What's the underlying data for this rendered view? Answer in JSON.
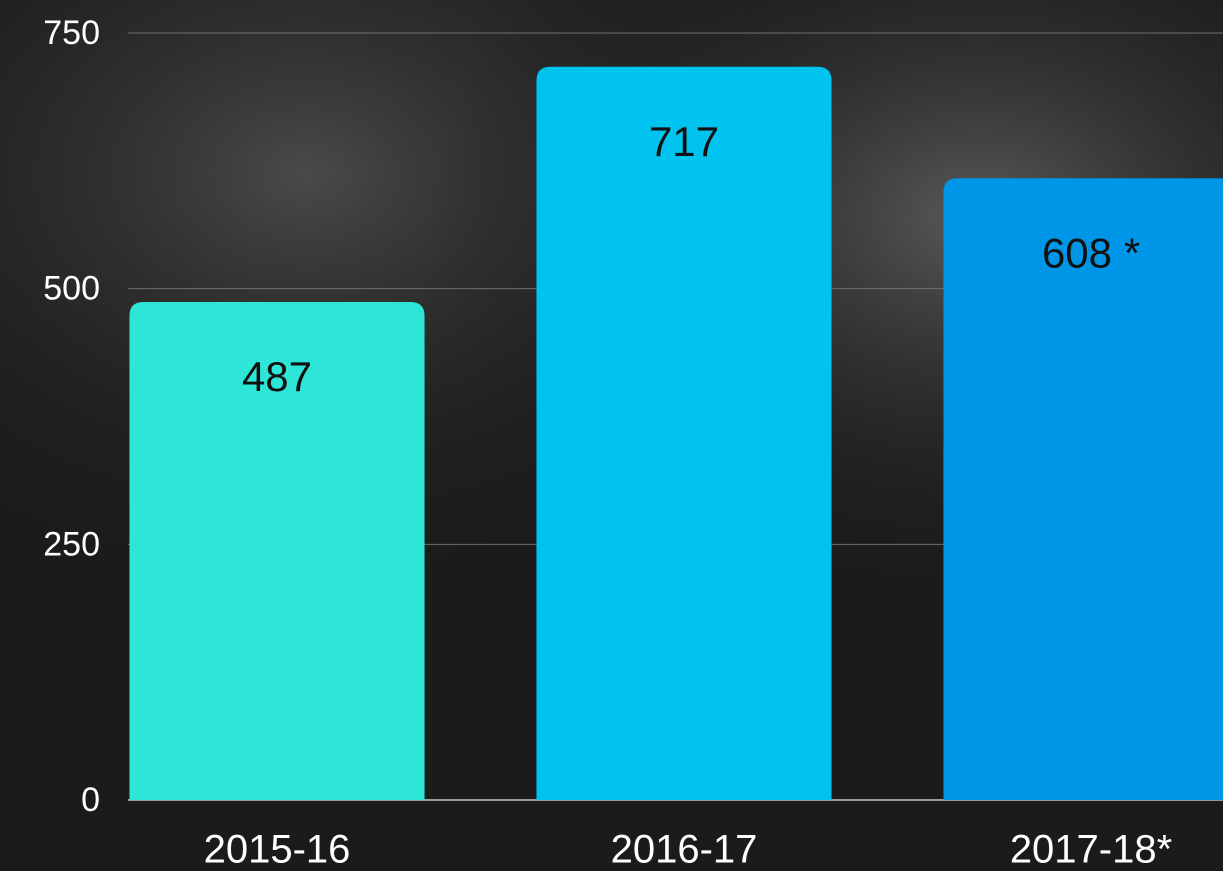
{
  "chart_data": {
    "type": "bar",
    "categories": [
      "2015-16",
      "2016-17",
      "2017-18*"
    ],
    "values": [
      487,
      717,
      608
    ],
    "value_labels": [
      "487",
      "717",
      "608 *"
    ],
    "colors": [
      "#2ee6d8",
      "#00c3ef",
      "#0096e8"
    ],
    "ylim": [
      0,
      750
    ],
    "yticks": [
      0,
      250,
      500,
      750
    ],
    "grid": true
  }
}
